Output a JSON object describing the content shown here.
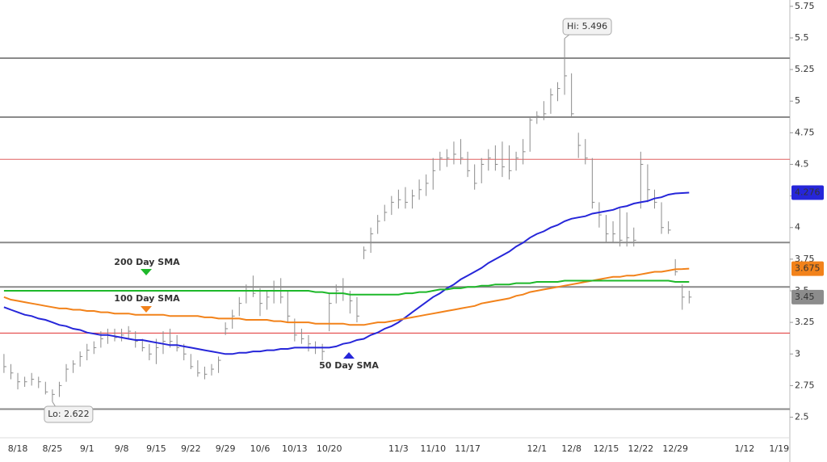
{
  "chart_data": {
    "type": "hlc",
    "categories": [
      null,
      null,
      "8/18",
      null,
      null,
      null,
      null,
      "8/25",
      null,
      null,
      null,
      null,
      "9/1",
      null,
      null,
      null,
      null,
      "9/8",
      null,
      null,
      null,
      null,
      "9/15",
      null,
      null,
      null,
      null,
      "9/22",
      null,
      null,
      null,
      null,
      "9/29",
      null,
      null,
      null,
      null,
      "10/6",
      null,
      null,
      null,
      null,
      "10/13",
      null,
      null,
      null,
      null,
      "10/20",
      null,
      null,
      null,
      null,
      null,
      null,
      null,
      null,
      null,
      "11/3",
      null,
      null,
      null,
      null,
      "11/10",
      null,
      null,
      null,
      null,
      "11/17",
      null,
      null,
      null,
      null,
      null,
      null,
      null,
      null,
      null,
      "12/1",
      null,
      null,
      null,
      null,
      "12/8",
      null,
      null,
      null,
      null,
      "12/15",
      null,
      null,
      null,
      null,
      "12/22",
      null,
      null,
      null,
      null,
      "12/29",
      null,
      null,
      null,
      null,
      null,
      null,
      null,
      null,
      null,
      "1/12",
      null,
      null,
      null,
      null,
      "1/19",
      null
    ],
    "high": [
      3.0,
      2.92,
      2.85,
      2.82,
      2.85,
      2.82,
      2.78,
      2.72,
      2.78,
      2.92,
      2.95,
      3.02,
      3.08,
      3.1,
      3.18,
      3.2,
      3.2,
      3.2,
      3.22,
      3.18,
      3.12,
      3.08,
      3.12,
      3.18,
      3.2,
      3.15,
      3.08,
      3.0,
      2.95,
      2.9,
      2.92,
      2.98,
      3.25,
      3.35,
      3.45,
      3.55,
      3.62,
      3.52,
      3.5,
      3.58,
      3.6,
      3.5,
      3.28,
      3.2,
      3.15,
      3.1,
      3.08,
      3.48,
      3.55,
      3.6,
      3.5,
      3.45,
      3.85,
      4.0,
      4.1,
      4.18,
      4.25,
      4.3,
      4.32,
      4.3,
      4.38,
      4.42,
      4.55,
      4.6,
      4.62,
      4.68,
      4.7,
      4.6,
      4.5,
      4.55,
      4.62,
      4.65,
      4.68,
      4.65,
      4.6,
      4.7,
      4.88,
      4.92,
      5.0,
      5.1,
      5.15,
      5.496,
      5.22,
      4.75,
      4.7,
      4.55,
      4.2,
      4.1,
      4.05,
      4.15,
      4.12,
      4.0,
      4.6,
      4.5,
      4.3,
      4.2,
      4.05,
      3.75,
      3.55,
      3.5,
      null,
      null,
      null,
      null,
      null,
      null,
      null,
      null,
      null,
      null,
      null,
      null,
      null,
      null
    ],
    "low": [
      2.85,
      2.8,
      2.72,
      2.74,
      2.75,
      2.73,
      2.68,
      2.622,
      2.66,
      2.78,
      2.85,
      2.9,
      2.95,
      3.0,
      3.05,
      3.08,
      3.1,
      3.1,
      3.12,
      3.05,
      3.02,
      2.95,
      2.92,
      3.0,
      3.05,
      3.02,
      2.95,
      2.88,
      2.82,
      2.8,
      2.83,
      2.85,
      3.15,
      3.2,
      3.3,
      3.4,
      3.45,
      3.3,
      3.35,
      3.4,
      3.4,
      3.25,
      3.1,
      3.08,
      3.02,
      3.0,
      2.95,
      3.18,
      3.4,
      3.42,
      3.32,
      3.25,
      3.75,
      3.8,
      3.95,
      4.05,
      4.1,
      4.15,
      4.15,
      4.15,
      4.22,
      4.25,
      4.3,
      4.45,
      4.48,
      4.5,
      4.5,
      4.4,
      4.3,
      4.35,
      4.45,
      4.45,
      4.4,
      4.38,
      4.45,
      4.5,
      4.6,
      4.82,
      4.85,
      4.9,
      5.0,
      5.05,
      4.88,
      4.55,
      4.5,
      4.15,
      4.0,
      3.88,
      3.88,
      3.85,
      3.85,
      3.85,
      4.15,
      4.2,
      4.15,
      3.95,
      3.95,
      3.62,
      3.35,
      3.4,
      null,
      null,
      null,
      null,
      null,
      null,
      null,
      null,
      null,
      null,
      null,
      null,
      null,
      null
    ],
    "close": [
      2.9,
      2.85,
      2.78,
      2.78,
      2.8,
      2.78,
      2.7,
      2.68,
      2.75,
      2.88,
      2.92,
      2.98,
      3.03,
      3.05,
      3.12,
      3.15,
      3.13,
      3.15,
      3.18,
      3.1,
      3.05,
      3.0,
      3.05,
      3.1,
      3.1,
      3.05,
      3.0,
      2.9,
      2.85,
      2.84,
      2.88,
      2.95,
      3.2,
      3.3,
      3.4,
      3.5,
      3.48,
      3.4,
      3.45,
      3.5,
      3.45,
      3.3,
      3.15,
      3.12,
      3.08,
      3.05,
      3.02,
      3.4,
      3.5,
      3.48,
      3.42,
      3.3,
      3.82,
      3.95,
      4.05,
      4.12,
      4.2,
      4.22,
      4.2,
      4.25,
      4.3,
      4.35,
      4.45,
      4.55,
      4.55,
      4.58,
      4.55,
      4.45,
      4.35,
      4.5,
      4.55,
      4.5,
      4.48,
      4.45,
      4.55,
      4.6,
      4.85,
      4.88,
      4.9,
      5.05,
      5.1,
      5.2,
      4.9,
      4.65,
      4.55,
      4.2,
      4.1,
      3.95,
      3.95,
      3.9,
      3.92,
      3.9,
      4.5,
      4.3,
      4.2,
      4.0,
      3.98,
      3.65,
      3.45,
      3.45,
      null,
      null,
      null,
      null,
      null,
      null,
      null,
      null,
      null,
      null,
      null,
      null,
      null,
      null
    ],
    "bar_color": "#8c8c8c",
    "series": [
      {
        "name": "50 Day SMA",
        "color": "#2626d9",
        "values": [
          3.37,
          3.35,
          3.33,
          3.31,
          3.3,
          3.28,
          3.27,
          3.25,
          3.23,
          3.22,
          3.2,
          3.19,
          3.17,
          3.16,
          3.15,
          3.15,
          3.14,
          3.13,
          3.12,
          3.11,
          3.11,
          3.1,
          3.09,
          3.08,
          3.07,
          3.07,
          3.06,
          3.05,
          3.04,
          3.03,
          3.02,
          3.01,
          3.0,
          3.0,
          3.01,
          3.01,
          3.02,
          3.02,
          3.03,
          3.03,
          3.04,
          3.04,
          3.05,
          3.05,
          3.05,
          3.05,
          3.05,
          3.05,
          3.06,
          3.08,
          3.09,
          3.11,
          3.12,
          3.15,
          3.17,
          3.2,
          3.22,
          3.25,
          3.29,
          3.33,
          3.37,
          3.41,
          3.45,
          3.48,
          3.52,
          3.55,
          3.59,
          3.62,
          3.65,
          3.68,
          3.72,
          3.75,
          3.78,
          3.81,
          3.85,
          3.88,
          3.92,
          3.95,
          3.97,
          4.0,
          4.02,
          4.05,
          4.07,
          4.08,
          4.09,
          4.11,
          4.12,
          4.13,
          4.14,
          4.16,
          4.17,
          4.19,
          4.2,
          4.21,
          4.23,
          4.24,
          4.26,
          4.27,
          4.273,
          4.276,
          null,
          null,
          null,
          null,
          null,
          null,
          null,
          null,
          null,
          null,
          null,
          null,
          null,
          null
        ]
      },
      {
        "name": "100 Day SMA",
        "color": "#f2821a",
        "values": [
          3.45,
          3.43,
          3.42,
          3.41,
          3.4,
          3.39,
          3.38,
          3.37,
          3.36,
          3.36,
          3.35,
          3.35,
          3.34,
          3.34,
          3.33,
          3.33,
          3.32,
          3.32,
          3.32,
          3.31,
          3.31,
          3.31,
          3.31,
          3.31,
          3.3,
          3.3,
          3.3,
          3.3,
          3.3,
          3.29,
          3.29,
          3.28,
          3.28,
          3.28,
          3.28,
          3.27,
          3.27,
          3.27,
          3.27,
          3.26,
          3.26,
          3.25,
          3.25,
          3.25,
          3.25,
          3.24,
          3.24,
          3.24,
          3.24,
          3.24,
          3.23,
          3.23,
          3.23,
          3.24,
          3.25,
          3.25,
          3.26,
          3.27,
          3.28,
          3.29,
          3.3,
          3.31,
          3.32,
          3.33,
          3.34,
          3.35,
          3.36,
          3.37,
          3.38,
          3.4,
          3.41,
          3.42,
          3.43,
          3.44,
          3.46,
          3.47,
          3.49,
          3.5,
          3.51,
          3.52,
          3.53,
          3.54,
          3.55,
          3.56,
          3.57,
          3.58,
          3.59,
          3.6,
          3.61,
          3.61,
          3.62,
          3.62,
          3.63,
          3.64,
          3.65,
          3.65,
          3.66,
          3.67,
          3.672,
          3.675,
          null,
          null,
          null,
          null,
          null,
          null,
          null,
          null,
          null,
          null,
          null,
          null,
          null,
          null
        ]
      },
      {
        "name": "200 Day SMA",
        "color": "#1eb82a",
        "values": [
          3.5,
          3.5,
          3.5,
          3.5,
          3.5,
          3.5,
          3.5,
          3.5,
          3.5,
          3.5,
          3.5,
          3.5,
          3.5,
          3.5,
          3.5,
          3.5,
          3.5,
          3.5,
          3.5,
          3.5,
          3.5,
          3.5,
          3.5,
          3.5,
          3.5,
          3.5,
          3.5,
          3.5,
          3.5,
          3.5,
          3.5,
          3.5,
          3.5,
          3.5,
          3.5,
          3.5,
          3.5,
          3.5,
          3.5,
          3.5,
          3.5,
          3.5,
          3.5,
          3.5,
          3.5,
          3.49,
          3.49,
          3.48,
          3.48,
          3.48,
          3.47,
          3.47,
          3.47,
          3.47,
          3.47,
          3.47,
          3.47,
          3.47,
          3.48,
          3.48,
          3.49,
          3.49,
          3.5,
          3.51,
          3.51,
          3.52,
          3.52,
          3.53,
          3.53,
          3.54,
          3.54,
          3.55,
          3.55,
          3.55,
          3.56,
          3.56,
          3.56,
          3.57,
          3.57,
          3.57,
          3.57,
          3.58,
          3.58,
          3.58,
          3.58,
          3.58,
          3.58,
          3.58,
          3.58,
          3.58,
          3.58,
          3.58,
          3.58,
          3.58,
          3.58,
          3.58,
          3.58,
          3.57,
          3.57,
          3.57,
          null,
          null,
          null,
          null,
          null,
          null,
          null,
          null,
          null,
          null,
          null,
          null,
          null,
          null
        ]
      }
    ],
    "levels": [
      {
        "value": 5.34,
        "color": "#8a8a8a"
      },
      {
        "value": 4.874,
        "color": "#8a8a8a"
      },
      {
        "value": 4.54,
        "color": "#e06060"
      },
      {
        "value": 3.882,
        "color": "#8a8a8a"
      },
      {
        "value": 3.53,
        "color": "#8a8a8a"
      },
      {
        "value": 3.165,
        "color": "#e03030"
      },
      {
        "value": 2.564,
        "color": "#8a8a8a"
      }
    ],
    "hi_label": "Hi: 5.496",
    "lo_label": "Lo: 2.622",
    "ylim": [
      2.35,
      5.8
    ],
    "yticks": [
      2.5,
      2.75,
      3,
      3.25,
      3.5,
      3.75,
      4,
      4.25,
      4.5,
      4.75,
      5,
      5.25,
      5.5,
      5.75
    ]
  }
}
